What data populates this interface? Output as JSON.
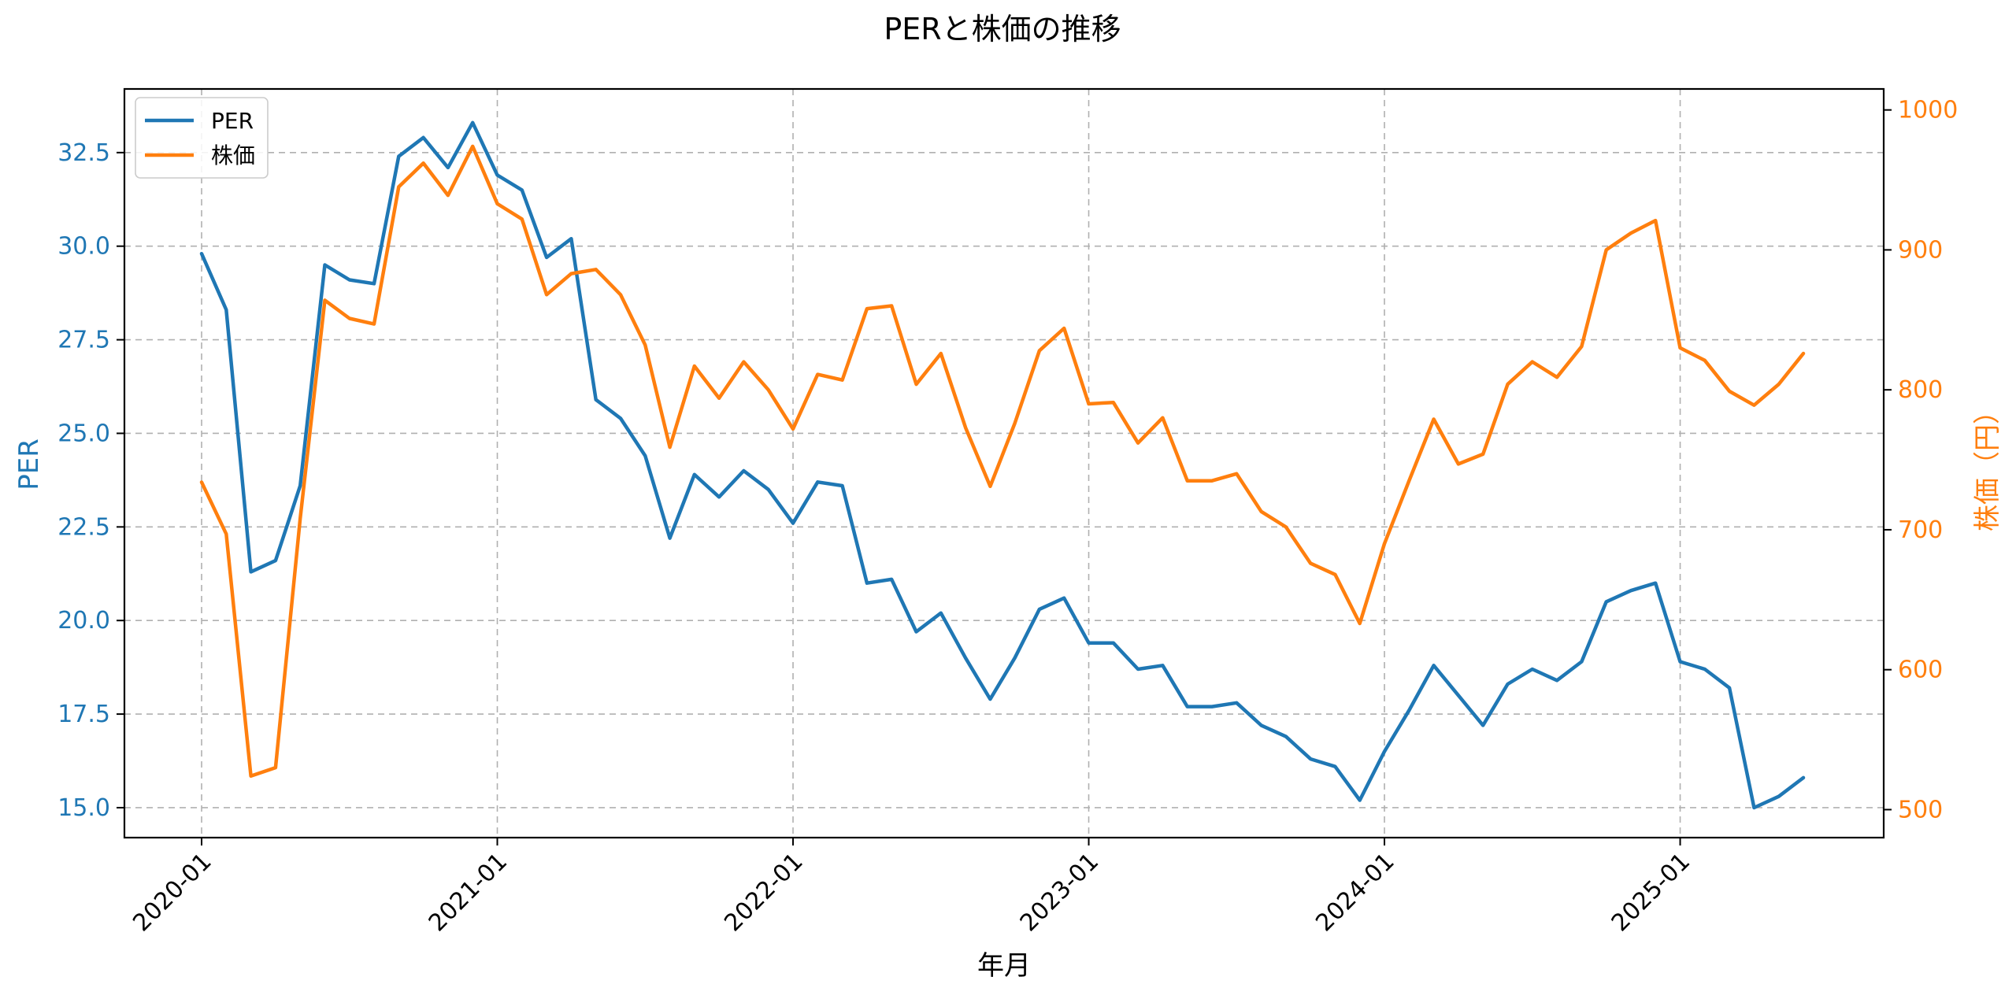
{
  "chart_data": {
    "type": "line",
    "title": "PERと株価の推移",
    "xlabel": "年月",
    "ylabel_left": "PER",
    "ylabel_right": "株価（円）",
    "ylim_left": [
      14.2,
      34.2
    ],
    "ylim_right": [
      480,
      1015
    ],
    "x_ticks": [
      "2020-01",
      "2021-01",
      "2022-01",
      "2023-01",
      "2024-01",
      "2025-01"
    ],
    "y_ticks_left": [
      "15.0",
      "17.5",
      "20.0",
      "22.5",
      "25.0",
      "27.5",
      "30.0",
      "32.5"
    ],
    "y_ticks_right": [
      "500",
      "600",
      "700",
      "800",
      "900",
      "1000"
    ],
    "grid": true,
    "legend_position": "top-left",
    "colors": {
      "per": "#1f77b4",
      "price": "#ff7f0e"
    },
    "x": [
      "2020-01",
      "2020-02",
      "2020-03",
      "2020-04",
      "2020-05",
      "2020-06",
      "2020-07",
      "2020-08",
      "2020-09",
      "2020-10",
      "2020-11",
      "2020-12",
      "2021-01",
      "2021-02",
      "2021-03",
      "2021-04",
      "2021-05",
      "2021-06",
      "2021-07",
      "2021-08",
      "2021-09",
      "2021-10",
      "2021-11",
      "2021-12",
      "2022-01",
      "2022-02",
      "2022-03",
      "2022-04",
      "2022-05",
      "2022-06",
      "2022-07",
      "2022-08",
      "2022-09",
      "2022-10",
      "2022-11",
      "2022-12",
      "2023-01",
      "2023-02",
      "2023-03",
      "2023-04",
      "2023-05",
      "2023-06",
      "2023-07",
      "2023-08",
      "2023-09",
      "2023-10",
      "2023-11",
      "2023-12",
      "2024-01",
      "2024-02",
      "2024-03",
      "2024-04",
      "2024-05",
      "2024-06",
      "2024-07",
      "2024-08",
      "2024-09",
      "2024-10",
      "2024-11",
      "2024-12",
      "2025-01",
      "2025-02",
      "2025-03",
      "2025-04",
      "2025-05",
      "2025-06"
    ],
    "series": [
      {
        "name": "PER",
        "axis": "left",
        "values": [
          29.8,
          28.3,
          21.3,
          21.6,
          23.6,
          29.5,
          29.1,
          29.0,
          32.4,
          32.9,
          32.1,
          33.3,
          31.9,
          31.5,
          29.7,
          30.2,
          25.9,
          25.4,
          24.4,
          22.2,
          23.9,
          23.3,
          24.0,
          23.5,
          22.6,
          23.7,
          23.6,
          21.0,
          21.1,
          19.7,
          20.2,
          19.0,
          17.9,
          19.0,
          20.3,
          20.6,
          19.4,
          19.4,
          18.7,
          18.8,
          17.7,
          17.7,
          17.8,
          17.2,
          16.9,
          16.3,
          16.1,
          15.2,
          16.5,
          17.6,
          18.8,
          18.0,
          17.2,
          18.3,
          18.7,
          18.4,
          18.9,
          20.5,
          20.8,
          21.0,
          18.9,
          18.7,
          18.2,
          15.0,
          15.3,
          15.8
        ]
      },
      {
        "name": "株価",
        "axis": "right",
        "values": [
          734,
          697,
          524,
          530,
          708,
          864,
          851,
          847,
          945,
          962,
          939,
          974,
          933,
          922,
          868,
          883,
          886,
          868,
          832,
          759,
          817,
          794,
          820,
          800,
          772,
          811,
          807,
          858,
          860,
          804,
          826,
          773,
          731,
          776,
          828,
          844,
          790,
          791,
          762,
          780,
          735,
          735,
          740,
          713,
          702,
          676,
          668,
          633,
          690,
          735,
          779,
          747,
          754,
          804,
          820,
          809,
          831,
          900,
          912,
          921,
          830,
          821,
          799,
          789,
          804,
          826
        ]
      }
    ]
  }
}
